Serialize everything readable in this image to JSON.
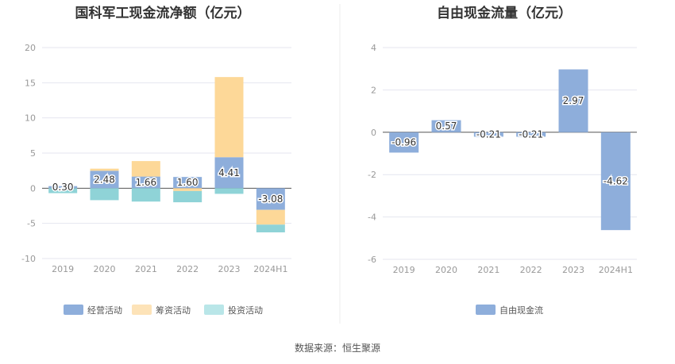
{
  "colors": {
    "operating": "#8eaedb",
    "financing": "#fdd898",
    "investing": "#8fd3d7",
    "fcf": "#8eaedb",
    "legend_investing": "#b9e6e8",
    "legend_financing": "#fde3b8",
    "grid": "#e4e6ef",
    "zero": "#555555"
  },
  "chart_data": [
    {
      "type": "bar",
      "stacked": true,
      "title": "国科军工现金流净额（亿元）",
      "categories": [
        "2019",
        "2020",
        "2021",
        "2022",
        "2023",
        "2024H1"
      ],
      "ylim": [
        -10,
        20
      ],
      "yticks": [
        "20",
        "15",
        "10",
        "5",
        "0",
        "-5",
        "-10"
      ],
      "grid": true,
      "legend": "bottom",
      "series": [
        {
          "name": "经营活动",
          "values": [
            0.3,
            2.48,
            1.66,
            1.6,
            4.41,
            -3.08
          ]
        },
        {
          "name": "筹资活动",
          "values": [
            0.0,
            0.3,
            2.2,
            -0.4,
            11.4,
            -2.1
          ]
        },
        {
          "name": "投资活动",
          "values": [
            -0.7,
            -1.7,
            -1.9,
            -1.6,
            -0.8,
            -1.1
          ]
        }
      ],
      "data_labels": [
        "0.30",
        "2.48",
        "1.66",
        "1.60",
        "4.41",
        "-3.08"
      ]
    },
    {
      "type": "bar",
      "title": "自由现金流量（亿元）",
      "categories": [
        "2019",
        "2020",
        "2021",
        "2022",
        "2023",
        "2024H1"
      ],
      "ylim": [
        -6,
        4
      ],
      "yticks": [
        "4",
        "2",
        "0",
        "-2",
        "-4",
        "-6"
      ],
      "grid": true,
      "legend": "bottom",
      "series": [
        {
          "name": "自由现金流",
          "values": [
            -0.96,
            0.57,
            -0.21,
            -0.21,
            2.97,
            -4.62
          ]
        }
      ],
      "data_labels": [
        "-0.96",
        "0.57",
        "-0.21",
        "-0.21",
        "2.97",
        "-4.62"
      ]
    }
  ],
  "source_text": "数据来源：恒生聚源"
}
